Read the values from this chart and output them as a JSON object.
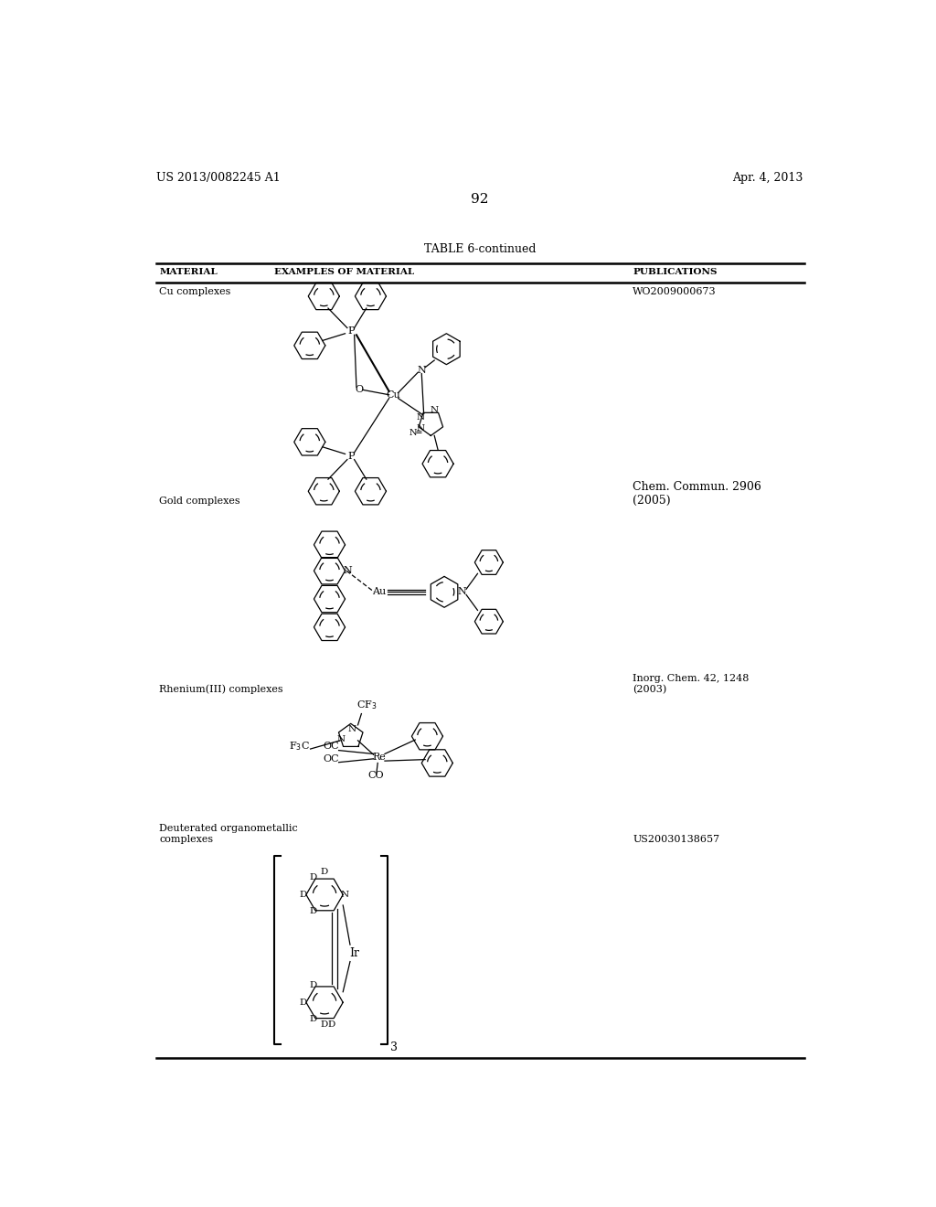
{
  "page_header_left": "US 2013/0082245 A1",
  "page_header_right": "Apr. 4, 2013",
  "page_number": "92",
  "table_title": "TABLE 6-continued",
  "col1_header": "MATERIAL",
  "col2_header": "EXAMPLES OF MATERIAL",
  "col3_header": "PUBLICATIONS",
  "row1_material": "Cu complexes",
  "row1_pub": "WO2009000673",
  "row2_material": "Gold complexes",
  "row2_pub": "Chem. Commun. 2906\n(2005)",
  "row3_material": "Rhenium(III) complexes",
  "row3_pub": "Inorg. Chem. 42, 1248\n(2003)",
  "row4_material": "Deuterated organometallic\ncomplexes",
  "row4_pub": "US20030138657",
  "bg": "#ffffff",
  "fg": "#000000"
}
